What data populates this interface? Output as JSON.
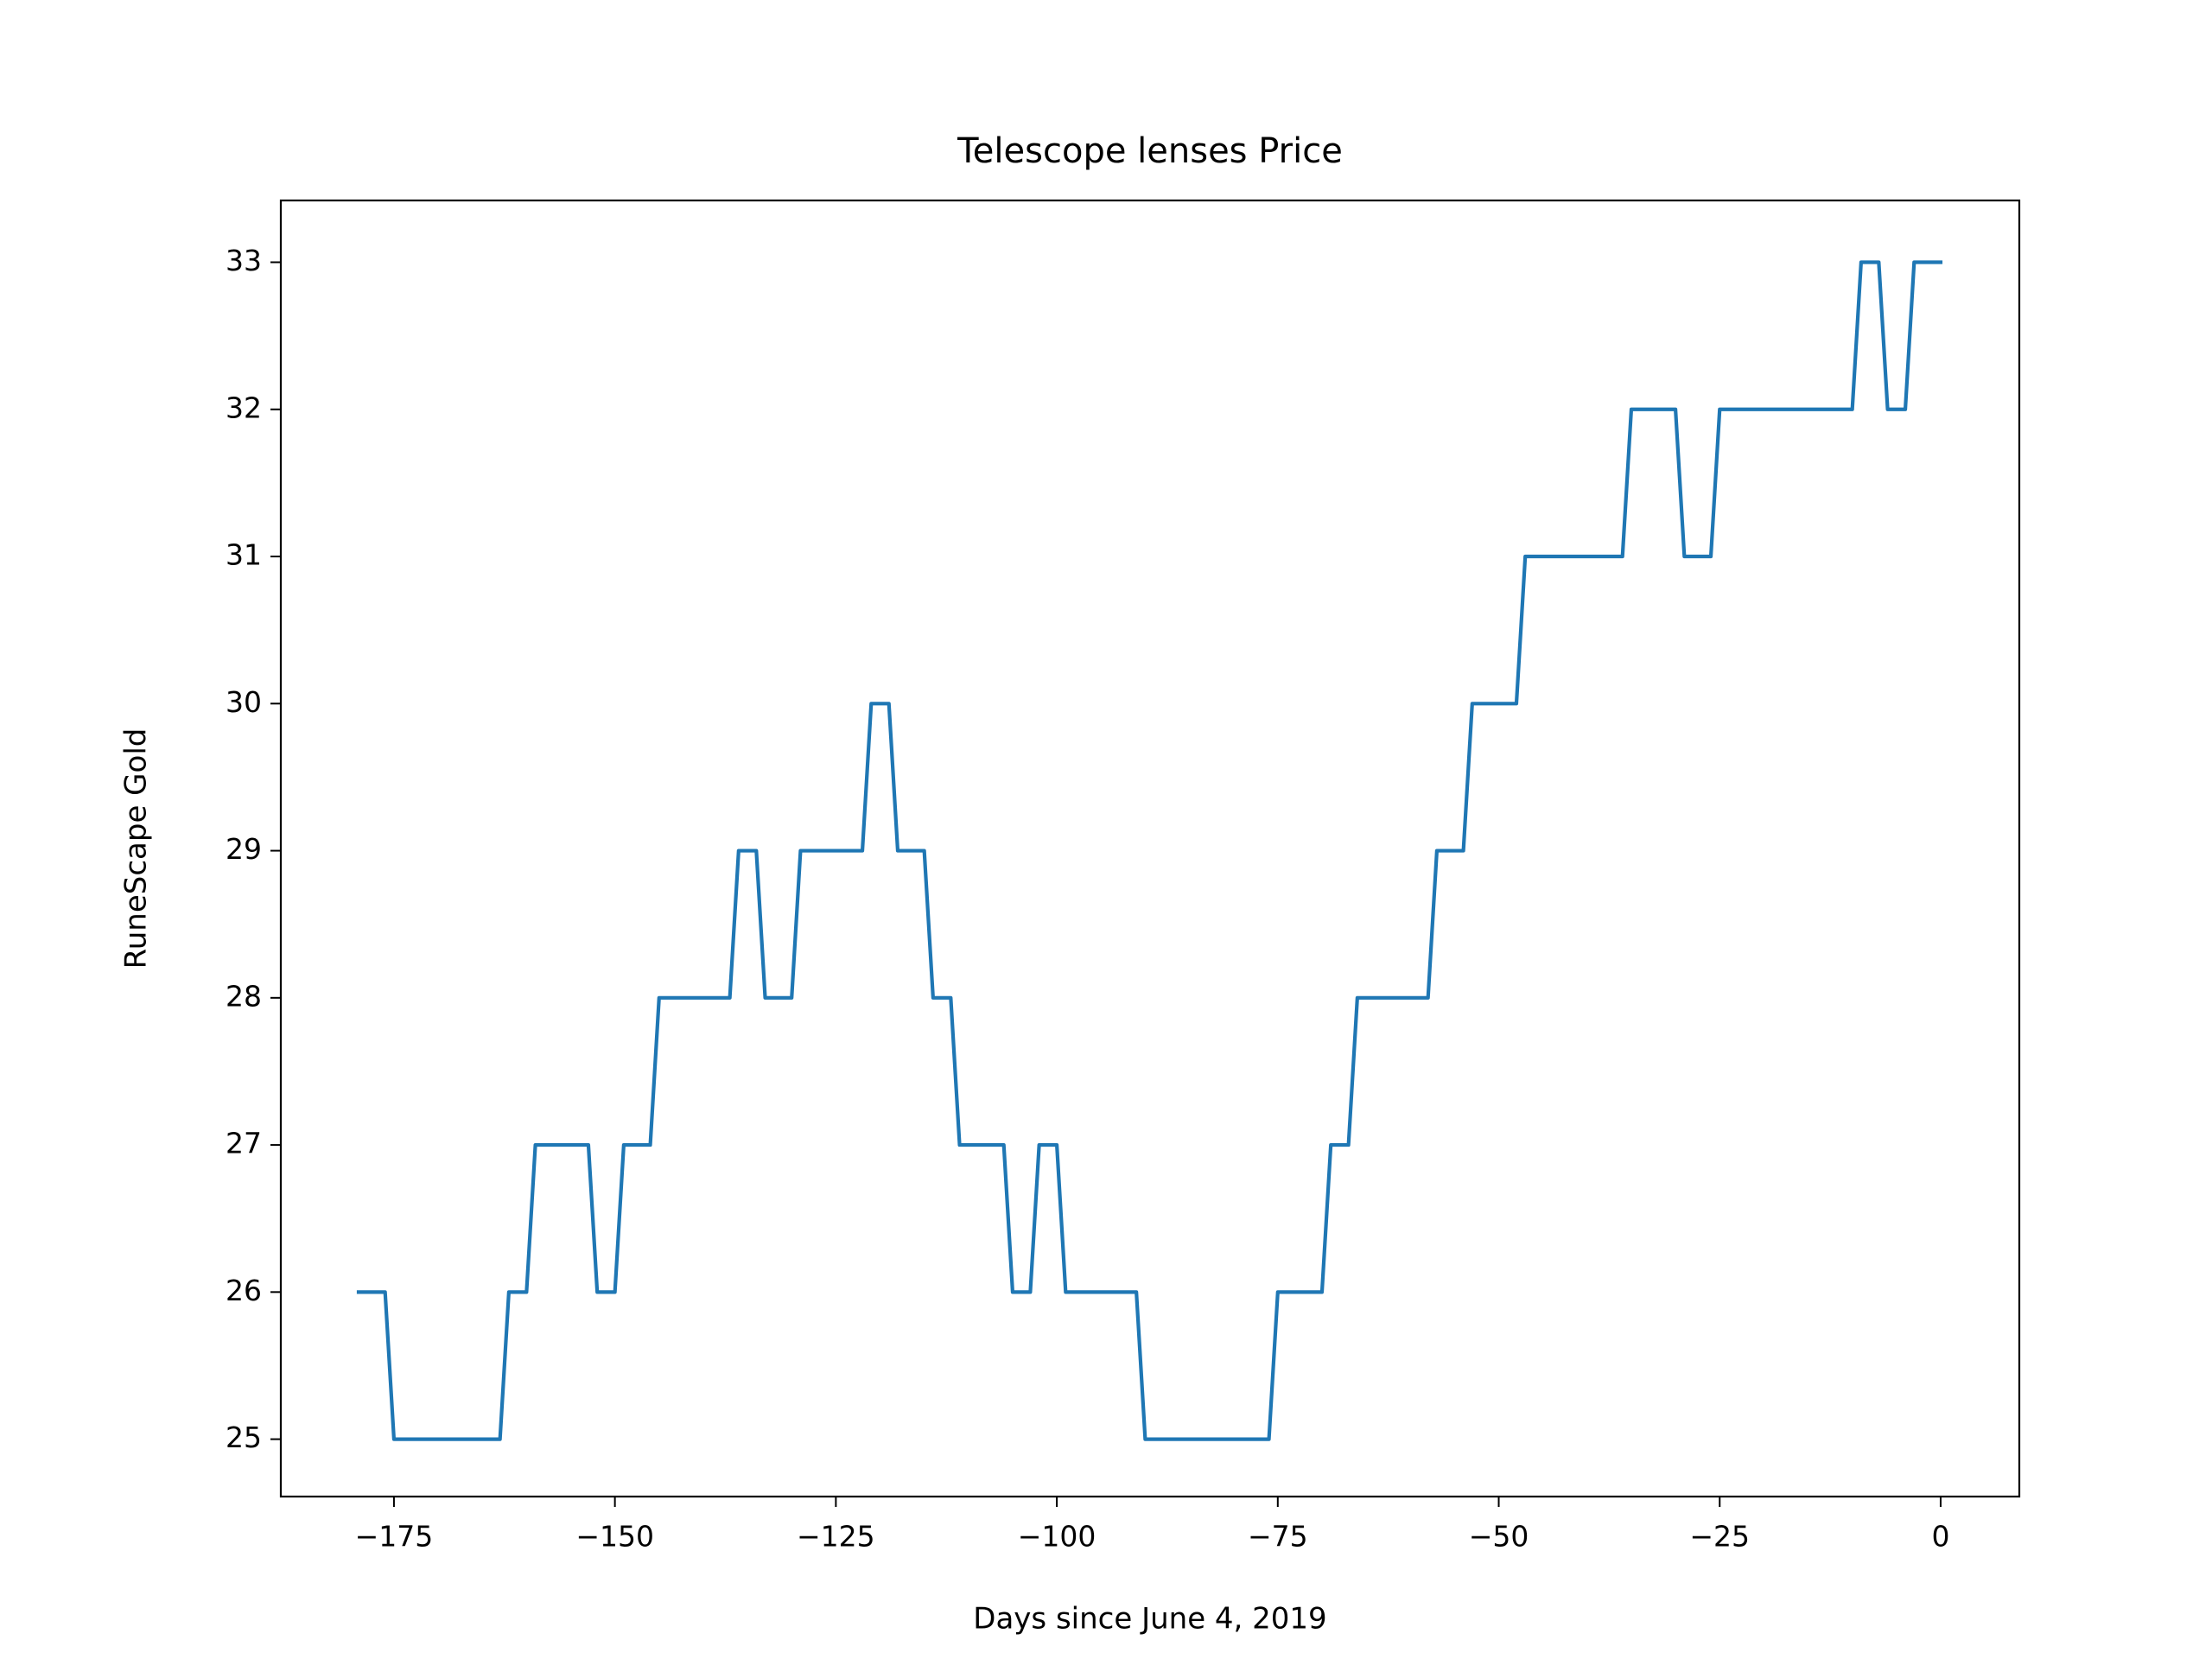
{
  "chart_data": {
    "type": "line",
    "title": "Telescope lenses Price",
    "x_label": "Days since June 4, 2019",
    "y_label": "RuneScape Gold",
    "x": [
      -179,
      -178,
      -177,
      -176,
      -175,
      -174,
      -173,
      -172,
      -171,
      -170,
      -169,
      -168,
      -167,
      -166,
      -165,
      -164,
      -163,
      -162,
      -161,
      -160,
      -159,
      -158,
      -157,
      -156,
      -155,
      -154,
      -153,
      -152,
      -151,
      -150,
      -149,
      -148,
      -147,
      -146,
      -145,
      -144,
      -143,
      -142,
      -141,
      -140,
      -139,
      -138,
      -137,
      -136,
      -135,
      -134,
      -133,
      -132,
      -131,
      -130,
      -129,
      -128,
      -127,
      -126,
      -125,
      -124,
      -123,
      -122,
      -121,
      -120,
      -119,
      -118,
      -117,
      -116,
      -115,
      -114,
      -113,
      -112,
      -111,
      -110,
      -109,
      -108,
      -107,
      -106,
      -105,
      -104,
      -103,
      -102,
      -101,
      -100,
      -99,
      -98,
      -97,
      -96,
      -95,
      -94,
      -93,
      -92,
      -91,
      -90,
      -89,
      -88,
      -87,
      -86,
      -85,
      -84,
      -83,
      -82,
      -81,
      -80,
      -79,
      -78,
      -77,
      -76,
      -75,
      -74,
      -73,
      -72,
      -71,
      -70,
      -69,
      -68,
      -67,
      -66,
      -65,
      -64,
      -63,
      -62,
      -61,
      -60,
      -59,
      -58,
      -57,
      -56,
      -55,
      -54,
      -53,
      -52,
      -51,
      -50,
      -49,
      -48,
      -47,
      -46,
      -45,
      -44,
      -43,
      -42,
      -41,
      -40,
      -39,
      -38,
      -37,
      -36,
      -35,
      -34,
      -33,
      -32,
      -31,
      -30,
      -29,
      -28,
      -27,
      -26,
      -25,
      -24,
      -23,
      -22,
      -21,
      -20,
      -19,
      -18,
      -17,
      -16,
      -15,
      -14,
      -13,
      -12,
      -11,
      -10,
      -9,
      -8,
      -7,
      -6,
      -5,
      -4,
      -3,
      -2,
      -1,
      0
    ],
    "series": [
      {
        "name": "Telescope lenses",
        "color": "#1f77b4",
        "values": [
          26,
          26,
          26,
          26,
          25,
          25,
          25,
          25,
          25,
          25,
          25,
          25,
          25,
          25,
          25,
          25,
          25,
          26,
          26,
          26,
          27,
          27,
          27,
          27,
          27,
          27,
          27,
          26,
          26,
          26,
          27,
          27,
          27,
          27,
          28,
          28,
          28,
          28,
          28,
          28,
          28,
          28,
          28,
          29,
          29,
          29,
          28,
          28,
          28,
          28,
          29,
          29,
          29,
          29,
          29,
          29,
          29,
          29,
          30,
          30,
          30,
          29,
          29,
          29,
          29,
          28,
          28,
          28,
          27,
          27,
          27,
          27,
          27,
          27,
          26,
          26,
          26,
          27,
          27,
          27,
          26,
          26,
          26,
          26,
          26,
          26,
          26,
          26,
          26,
          25,
          25,
          25,
          25,
          25,
          25,
          25,
          25,
          25,
          25,
          25,
          25,
          25,
          25,
          25,
          26,
          26,
          26,
          26,
          26,
          26,
          27,
          27,
          27,
          28,
          28,
          28,
          28,
          28,
          28,
          28,
          28,
          28,
          29,
          29,
          29,
          29,
          30,
          30,
          30,
          30,
          30,
          30,
          31,
          31,
          31,
          31,
          31,
          31,
          31,
          31,
          31,
          31,
          31,
          31,
          32,
          32,
          32,
          32,
          32,
          32,
          31,
          31,
          31,
          31,
          32,
          32,
          32,
          32,
          32,
          32,
          32,
          32,
          32,
          32,
          32,
          32,
          32,
          32,
          32,
          32,
          33,
          33,
          33,
          32,
          32,
          32,
          33,
          33,
          33,
          33
        ]
      }
    ],
    "xlim": [
      -187.8,
      8.9
    ],
    "ylim": [
      24.61,
      33.42
    ],
    "xticks": [
      {
        "value": -175,
        "label": "−175"
      },
      {
        "value": -150,
        "label": "−150"
      },
      {
        "value": -125,
        "label": "−125"
      },
      {
        "value": -100,
        "label": "−100"
      },
      {
        "value": -75,
        "label": "−75"
      },
      {
        "value": -50,
        "label": "−50"
      },
      {
        "value": -25,
        "label": "−25"
      },
      0
    ],
    "yticks": [
      25,
      26,
      27,
      28,
      29,
      30,
      31,
      32,
      33
    ],
    "grid": false
  }
}
